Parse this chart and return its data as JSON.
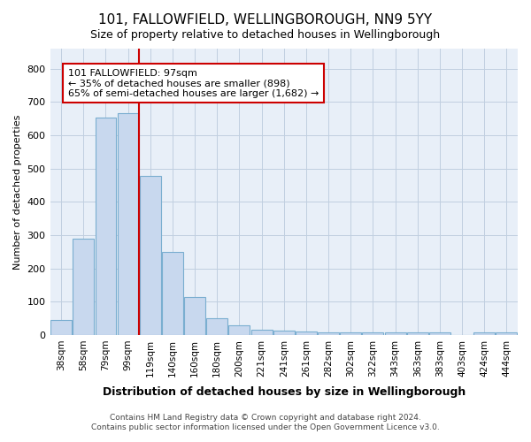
{
  "title": "101, FALLOWFIELD, WELLINGBOROUGH, NN9 5YY",
  "subtitle": "Size of property relative to detached houses in Wellingborough",
  "xlabel": "Distribution of detached houses by size in Wellingborough",
  "ylabel": "Number of detached properties",
  "categories": [
    "38sqm",
    "58sqm",
    "79sqm",
    "99sqm",
    "119sqm",
    "140sqm",
    "160sqm",
    "180sqm",
    "200sqm",
    "221sqm",
    "241sqm",
    "261sqm",
    "282sqm",
    "302sqm",
    "322sqm",
    "343sqm",
    "363sqm",
    "383sqm",
    "403sqm",
    "424sqm",
    "444sqm"
  ],
  "values": [
    45,
    290,
    652,
    665,
    478,
    250,
    113,
    50,
    28,
    15,
    14,
    10,
    7,
    7,
    7,
    7,
    8,
    8,
    1,
    7,
    7
  ],
  "bar_color": "#c8d8ee",
  "bar_edge_color": "#7aaed0",
  "grid_color": "#c0cfe0",
  "background_color": "#e8eff8",
  "property_line_x": 3.5,
  "annotation_text_line1": "101 FALLOWFIELD: 97sqm",
  "annotation_text_line2": "← 35% of detached houses are smaller (898)",
  "annotation_text_line3": "65% of semi-detached houses are larger (1,682) →",
  "annotation_box_color": "#ffffff",
  "annotation_line_color": "#cc0000",
  "ylim": [
    0,
    860
  ],
  "yticks": [
    0,
    100,
    200,
    300,
    400,
    500,
    600,
    700,
    800
  ],
  "footer_line1": "Contains HM Land Registry data © Crown copyright and database right 2024.",
  "footer_line2": "Contains public sector information licensed under the Open Government Licence v3.0."
}
